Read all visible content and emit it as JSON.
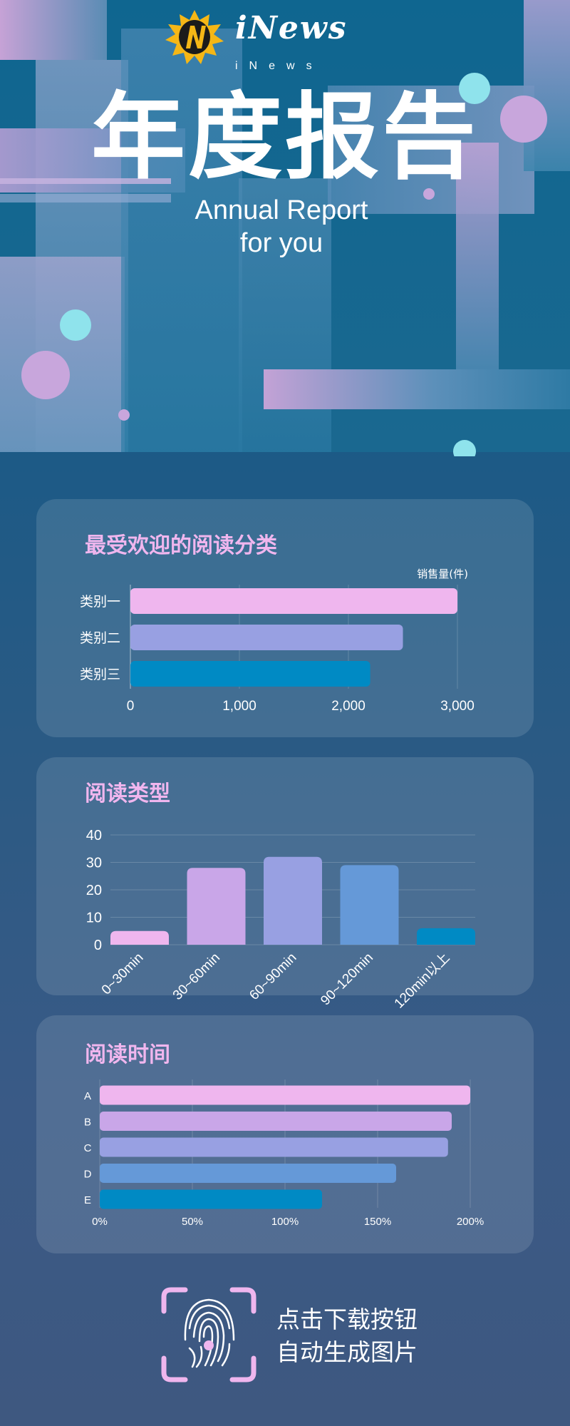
{
  "brand": {
    "logo_text": "iNews",
    "logo_sub": "iNews"
  },
  "header": {
    "title": "年度报告",
    "subtitle_line1": "Annual Report",
    "subtitle_line2": "for you"
  },
  "colors": {
    "pink": "#efb6ee",
    "lavender": "#c9a6e8",
    "periwinkle": "#98a0e2",
    "blue": "#6599d8",
    "teal": "#008ac4",
    "accent_title": "#f0b6ee",
    "cyan": "#8fe3ec"
  },
  "chart_data": [
    {
      "type": "bar",
      "orientation": "horizontal",
      "title": "最受欢迎的阅读分类",
      "unit_label": "销售量(件)",
      "categories": [
        "类别一",
        "类别二",
        "类别三"
      ],
      "values": [
        3000,
        2500,
        2200
      ],
      "xlim": [
        0,
        3000
      ],
      "ticks": [
        "0",
        "1,000",
        "2,000",
        "3,000"
      ],
      "bar_colors": [
        "#efb6ee",
        "#98a0e2",
        "#008ac4"
      ]
    },
    {
      "type": "bar",
      "orientation": "vertical",
      "title": "阅读类型",
      "categories": [
        "0~30min",
        "30~60min",
        "60~90min",
        "90~120min",
        "120min以上"
      ],
      "values": [
        5,
        28,
        32,
        29,
        6
      ],
      "ylim": [
        0,
        40
      ],
      "ticks": [
        "0",
        "10",
        "20",
        "30",
        "40"
      ],
      "bar_colors": [
        "#efb6ee",
        "#c9a6e8",
        "#98a0e2",
        "#6599d8",
        "#008ac4"
      ]
    },
    {
      "type": "bar",
      "orientation": "horizontal",
      "title": "阅读时间",
      "categories": [
        "A",
        "B",
        "C",
        "D",
        "E"
      ],
      "values": [
        200,
        190,
        188,
        160,
        120
      ],
      "xlim": [
        0,
        200
      ],
      "ticks": [
        "0%",
        "50%",
        "100%",
        "150%",
        "200%"
      ],
      "bar_colors": [
        "#efb6ee",
        "#c9a6e8",
        "#98a0e2",
        "#6599d8",
        "#008ac4"
      ]
    }
  ],
  "footer": {
    "cta_line1": "点击下载按钮",
    "cta_line2": "自动生成图片",
    "icon": "fingerprint-icon"
  }
}
